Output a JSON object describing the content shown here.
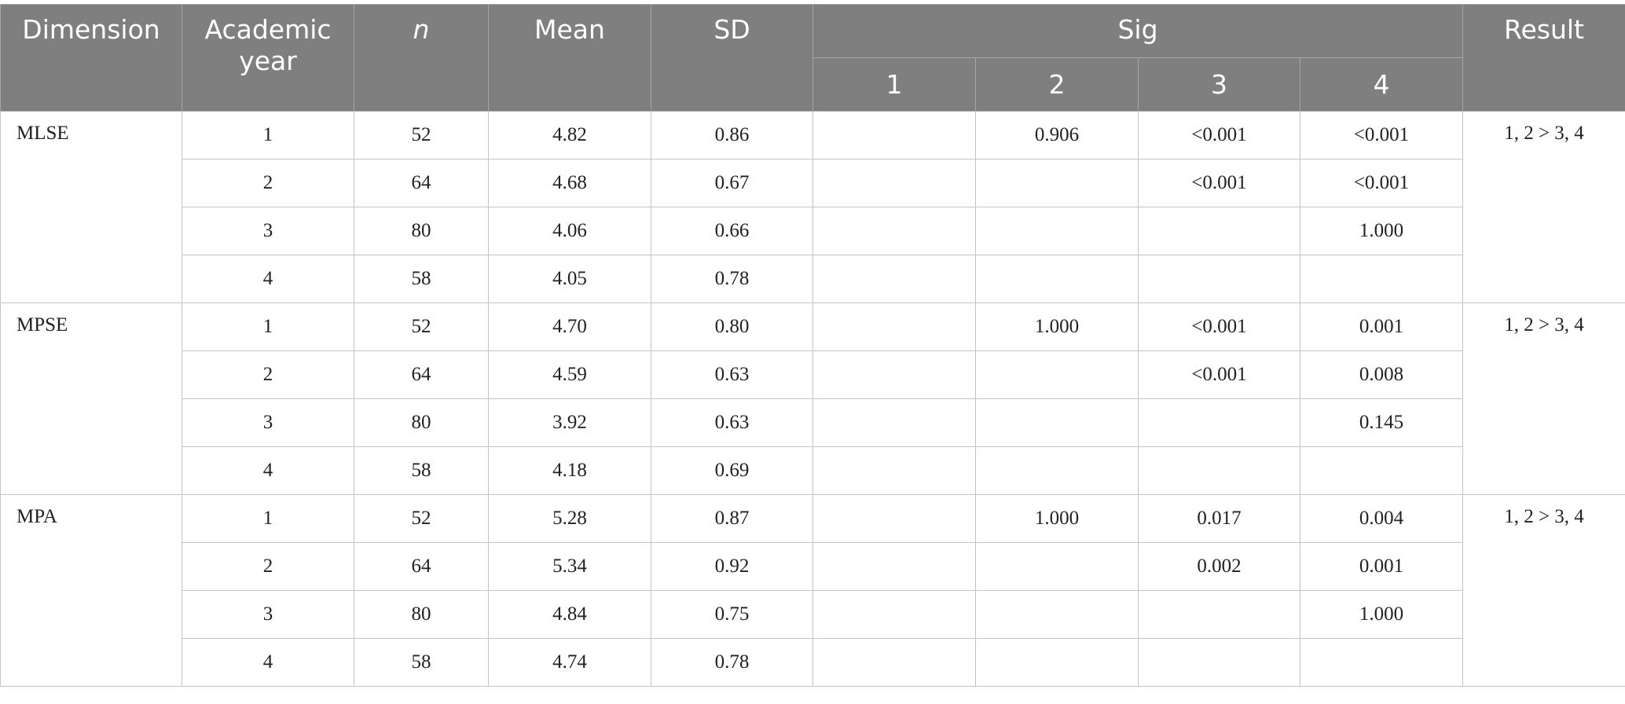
{
  "table": {
    "header": {
      "dimension": "Dimension",
      "year": "Academic year",
      "n": "n",
      "mean": "Mean",
      "sd": "SD",
      "sig": "Sig",
      "sig_columns": [
        "1",
        "2",
        "3",
        "4"
      ],
      "result": "Result"
    },
    "groups": [
      {
        "dimension": "MLSE",
        "result": "1, 2 > 3, 4",
        "rows": [
          {
            "year": "1",
            "n": "52",
            "mean": "4.82",
            "sd": "0.86",
            "sig": [
              null,
              "0.906",
              "<0.001",
              "<0.001"
            ]
          },
          {
            "year": "2",
            "n": "64",
            "mean": "4.68",
            "sd": "0.67",
            "sig": [
              null,
              null,
              "<0.001",
              "<0.001"
            ]
          },
          {
            "year": "3",
            "n": "80",
            "mean": "4.06",
            "sd": "0.66",
            "sig": [
              null,
              null,
              null,
              "1.000"
            ]
          },
          {
            "year": "4",
            "n": "58",
            "mean": "4.05",
            "sd": "0.78",
            "sig": [
              null,
              null,
              null,
              null
            ]
          }
        ]
      },
      {
        "dimension": "MPSE",
        "result": "1, 2 > 3, 4",
        "rows": [
          {
            "year": "1",
            "n": "52",
            "mean": "4.70",
            "sd": "0.80",
            "sig": [
              null,
              "1.000",
              "<0.001",
              "0.001"
            ]
          },
          {
            "year": "2",
            "n": "64",
            "mean": "4.59",
            "sd": "0.63",
            "sig": [
              null,
              null,
              "<0.001",
              "0.008"
            ]
          },
          {
            "year": "3",
            "n": "80",
            "mean": "3.92",
            "sd": "0.63",
            "sig": [
              null,
              null,
              null,
              "0.145"
            ]
          },
          {
            "year": "4",
            "n": "58",
            "mean": "4.18",
            "sd": "0.69",
            "sig": [
              null,
              null,
              null,
              null
            ]
          }
        ]
      },
      {
        "dimension": "MPA",
        "result": "1, 2 > 3, 4",
        "rows": [
          {
            "year": "1",
            "n": "52",
            "mean": "5.28",
            "sd": "0.87",
            "sig": [
              null,
              "1.000",
              "0.017",
              "0.004"
            ]
          },
          {
            "year": "2",
            "n": "64",
            "mean": "5.34",
            "sd": "0.92",
            "sig": [
              null,
              null,
              "0.002",
              "0.001"
            ]
          },
          {
            "year": "3",
            "n": "80",
            "mean": "4.84",
            "sd": "0.75",
            "sig": [
              null,
              null,
              null,
              "1.000"
            ]
          },
          {
            "year": "4",
            "n": "58",
            "mean": "4.74",
            "sd": "0.78",
            "sig": [
              null,
              null,
              null,
              null
            ]
          }
        ]
      }
    ]
  }
}
